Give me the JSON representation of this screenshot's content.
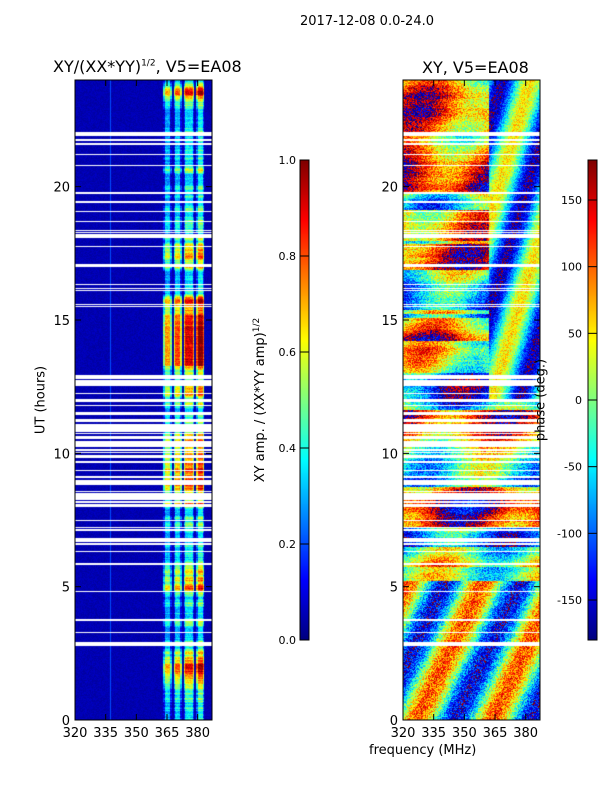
{
  "suptitle": "2017-12-08 0.0-24.0",
  "chart_data": [
    {
      "type": "heatmap",
      "title": "XY/(XX*YY)",
      "title_sup": "1/2",
      "title_suffix": ", V5=EA08",
      "xlabel": "",
      "ylabel": "UT (hours)",
      "xlim": [
        320,
        387
      ],
      "ylim": [
        0,
        24
      ],
      "xticks": [
        320,
        335,
        350,
        365,
        380
      ],
      "yticks": [
        0,
        5,
        10,
        15,
        20
      ],
      "colormap": "jet",
      "colorbar": {
        "label": "XY amp. / (XX*YY amp)",
        "label_sup": "1/2",
        "range": [
          0.0,
          1.0
        ],
        "ticks": [
          "0.0",
          "0.2",
          "0.4",
          "0.6",
          "0.8",
          "1.0"
        ]
      },
      "bright_channels_mhz": [
        [
          363,
          367
        ],
        [
          368,
          372
        ],
        [
          373,
          378
        ],
        [
          379,
          383
        ]
      ]
    },
    {
      "type": "heatmap",
      "title": "XY, V5=EA08",
      "xlabel": "frequency (MHz)",
      "ylabel": "",
      "xlim": [
        320,
        387
      ],
      "ylim": [
        0,
        24
      ],
      "xticks": [
        320,
        335,
        350,
        365,
        380
      ],
      "yticks": [
        0,
        5,
        10,
        15,
        20
      ],
      "colormap": "jet",
      "colorbar": {
        "label": "phase (deg.)",
        "range": [
          -180,
          180
        ],
        "ticks": [
          -150,
          -100,
          -50,
          0,
          50,
          100,
          150
        ]
      }
    }
  ]
}
